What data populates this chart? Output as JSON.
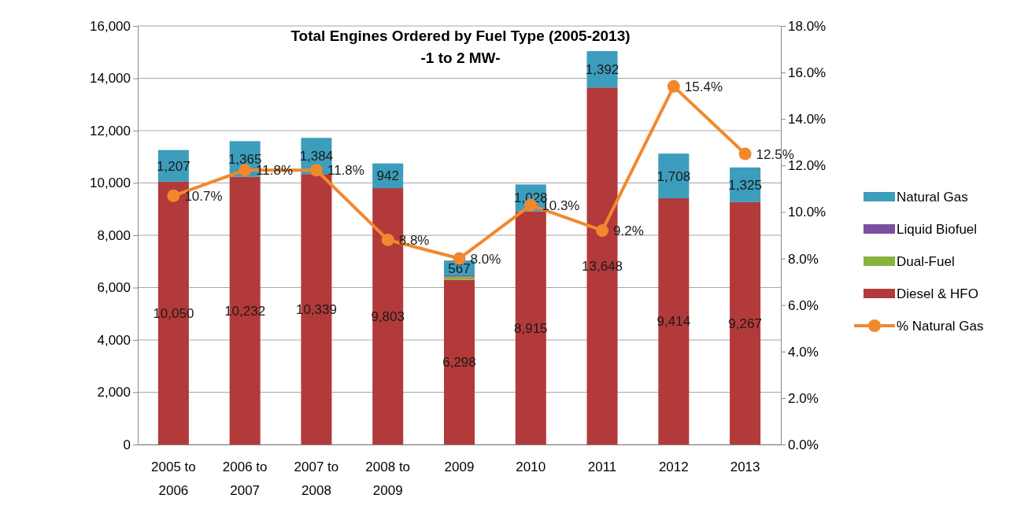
{
  "chart_data": {
    "type": "bar",
    "title": "Total Engines Ordered by Fuel Type (2005-2013)",
    "subtitle": "-1 to 2 MW-",
    "categories": [
      "2005 to 2006",
      "2006 to 2007",
      "2007 to 2008",
      "2008 to 2009",
      "2009",
      "2010",
      "2011",
      "2012",
      "2013"
    ],
    "stacked": true,
    "series": [
      {
        "name": "Diesel & HFO",
        "color": "#b33a3a",
        "values": [
          10050,
          10232,
          10339,
          9803,
          6298,
          8915,
          13648,
          9414,
          9267
        ],
        "value_labels": [
          "10,050",
          "10,232",
          "10,339",
          "9,803",
          "6,298",
          "8,915",
          "13,648",
          "9,414",
          "9,267"
        ]
      },
      {
        "name": "Dual-Fuel",
        "color": "#8bb23f",
        "values": [
          0,
          0,
          0,
          0,
          120,
          0,
          0,
          0,
          0
        ]
      },
      {
        "name": "Liquid Biofuel",
        "color": "#7a4fa0",
        "values": [
          0,
          0,
          0,
          0,
          50,
          0,
          0,
          0,
          0
        ]
      },
      {
        "name": "Natural Gas",
        "color": "#3d9dbd",
        "values": [
          1207,
          1365,
          1384,
          942,
          567,
          1028,
          1392,
          1708,
          1325
        ],
        "value_labels": [
          "1,207",
          "1,365",
          "1,384",
          "942",
          "567",
          "1,028",
          "1,392",
          "1,708",
          "1,325"
        ]
      },
      {
        "name": "% Natural Gas",
        "type": "line",
        "axis": "y2",
        "color": "#f0892e",
        "marker": "circle",
        "values": [
          10.7,
          11.8,
          11.8,
          8.8,
          8.0,
          10.3,
          9.2,
          15.4,
          12.5
        ],
        "value_labels": [
          "10.7%",
          "11.8%",
          "11.8%",
          "8.8%",
          "8.0%",
          "10.3%",
          "9.2%",
          "15.4%",
          "12.5%"
        ]
      }
    ],
    "ylim": [
      0,
      16000
    ],
    "yticks": [
      {
        "value": 0,
        "label": "0"
      },
      {
        "value": 2000,
        "label": "2,000"
      },
      {
        "value": 4000,
        "label": "4,000"
      },
      {
        "value": 6000,
        "label": "6,000"
      },
      {
        "value": 8000,
        "label": "8,000"
      },
      {
        "value": 10000,
        "label": "10,000"
      },
      {
        "value": 12000,
        "label": "12,000"
      },
      {
        "value": 14000,
        "label": "14,000"
      },
      {
        "value": 16000,
        "label": "16,000"
      }
    ],
    "y2lim": [
      0,
      18
    ],
    "y2ticks": [
      {
        "value": 0,
        "label": "0.0%"
      },
      {
        "value": 2,
        "label": "2.0%"
      },
      {
        "value": 4,
        "label": "4.0%"
      },
      {
        "value": 6,
        "label": "6.0%"
      },
      {
        "value": 8,
        "label": "8.0%"
      },
      {
        "value": 10,
        "label": "10.0%"
      },
      {
        "value": 12,
        "label": "12.0%"
      },
      {
        "value": 14,
        "label": "14.0%"
      },
      {
        "value": 16,
        "label": "16.0%"
      },
      {
        "value": 18,
        "label": "18.0%"
      }
    ],
    "grid": "y",
    "legend": "right"
  }
}
